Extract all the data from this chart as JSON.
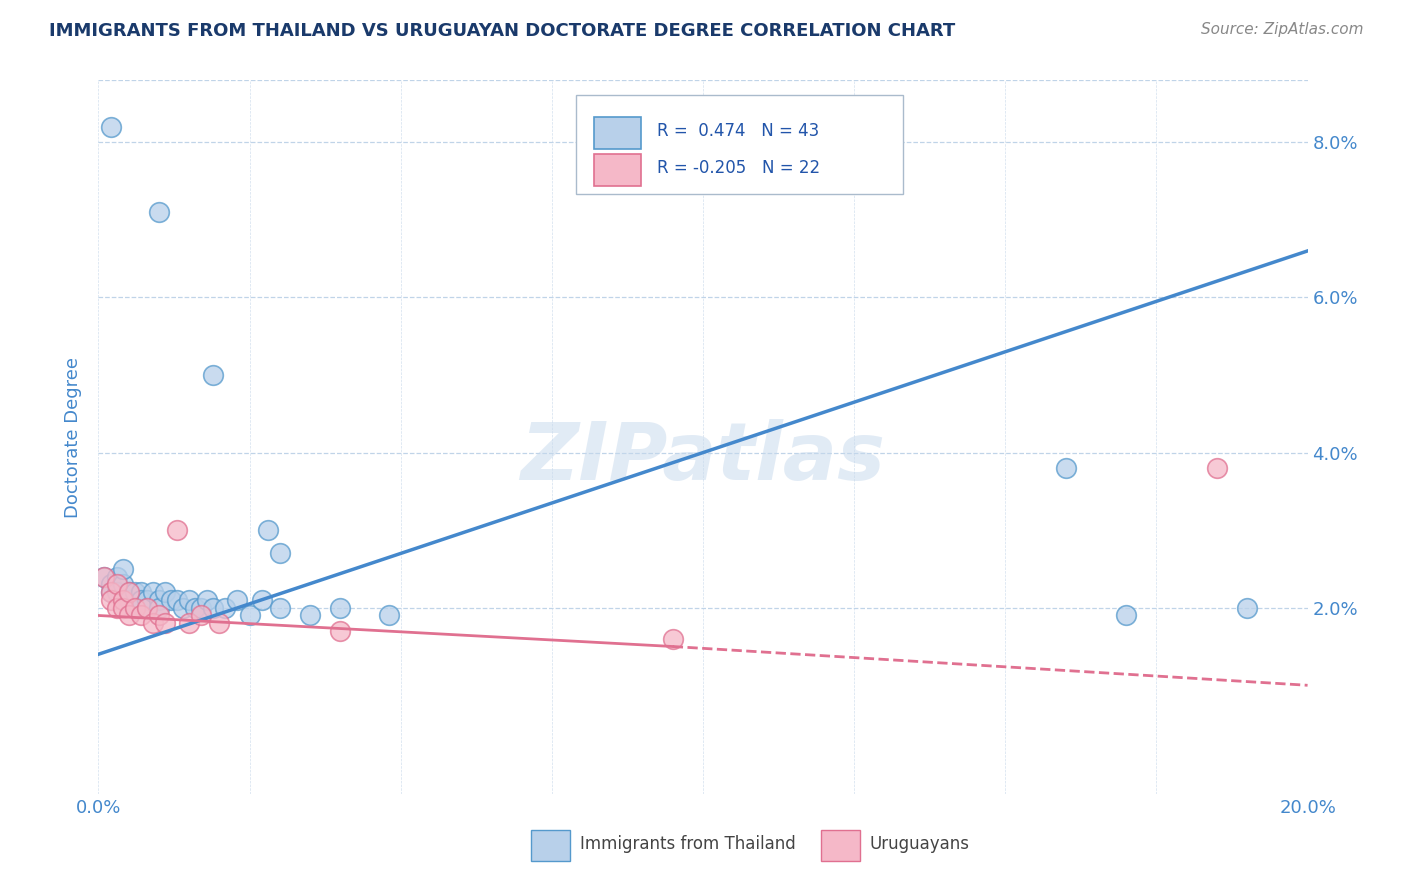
{
  "title": "IMMIGRANTS FROM THAILAND VS URUGUAYAN DOCTORATE DEGREE CORRELATION CHART",
  "source": "Source: ZipAtlas.com",
  "ylabel": "Doctorate Degree",
  "watermark": "ZIPatlas",
  "xlim": [
    0.0,
    0.2
  ],
  "ylim": [
    -0.004,
    0.088
  ],
  "xtick_positions": [
    0.0,
    0.2
  ],
  "xtick_labels": [
    "0.0%",
    "20.0%"
  ],
  "ytick_values": [
    0.02,
    0.04,
    0.06,
    0.08
  ],
  "ytick_labels": [
    "2.0%",
    "4.0%",
    "6.0%",
    "8.0%"
  ],
  "legend_label1": "Immigrants from Thailand",
  "legend_label2": "Uruguayans",
  "color_blue_fill": "#b8d0ea",
  "color_blue_edge": "#5599cc",
  "color_pink_fill": "#f5b8c8",
  "color_pink_edge": "#e07090",
  "line_blue": "#4488cc",
  "line_pink": "#e07090",
  "background": "#ffffff",
  "grid_color": "#c0d4e8",
  "title_color": "#1a3a6b",
  "axis_tick_color": "#4488cc",
  "ylabel_color": "#4488cc",
  "source_color": "#888888",
  "legend_text_color": "#2255aa",
  "scatter_blue": [
    [
      0.002,
      0.082
    ],
    [
      0.01,
      0.071
    ],
    [
      0.019,
      0.05
    ],
    [
      0.028,
      0.03
    ],
    [
      0.03,
      0.027
    ],
    [
      0.001,
      0.024
    ],
    [
      0.002,
      0.023
    ],
    [
      0.002,
      0.022
    ],
    [
      0.003,
      0.024
    ],
    [
      0.003,
      0.022
    ],
    [
      0.004,
      0.023
    ],
    [
      0.004,
      0.025
    ],
    [
      0.005,
      0.022
    ],
    [
      0.005,
      0.021
    ],
    [
      0.006,
      0.022
    ],
    [
      0.006,
      0.02
    ],
    [
      0.007,
      0.022
    ],
    [
      0.007,
      0.021
    ],
    [
      0.008,
      0.021
    ],
    [
      0.008,
      0.02
    ],
    [
      0.009,
      0.022
    ],
    [
      0.01,
      0.021
    ],
    [
      0.01,
      0.02
    ],
    [
      0.011,
      0.022
    ],
    [
      0.012,
      0.021
    ],
    [
      0.013,
      0.021
    ],
    [
      0.014,
      0.02
    ],
    [
      0.015,
      0.021
    ],
    [
      0.016,
      0.02
    ],
    [
      0.017,
      0.02
    ],
    [
      0.018,
      0.021
    ],
    [
      0.019,
      0.02
    ],
    [
      0.021,
      0.02
    ],
    [
      0.023,
      0.021
    ],
    [
      0.025,
      0.019
    ],
    [
      0.027,
      0.021
    ],
    [
      0.03,
      0.02
    ],
    [
      0.035,
      0.019
    ],
    [
      0.04,
      0.02
    ],
    [
      0.048,
      0.019
    ],
    [
      0.16,
      0.038
    ],
    [
      0.17,
      0.019
    ],
    [
      0.19,
      0.02
    ]
  ],
  "scatter_pink": [
    [
      0.001,
      0.024
    ],
    [
      0.002,
      0.022
    ],
    [
      0.002,
      0.021
    ],
    [
      0.003,
      0.023
    ],
    [
      0.003,
      0.02
    ],
    [
      0.004,
      0.021
    ],
    [
      0.004,
      0.02
    ],
    [
      0.005,
      0.022
    ],
    [
      0.005,
      0.019
    ],
    [
      0.006,
      0.02
    ],
    [
      0.007,
      0.019
    ],
    [
      0.008,
      0.02
    ],
    [
      0.009,
      0.018
    ],
    [
      0.01,
      0.019
    ],
    [
      0.011,
      0.018
    ],
    [
      0.013,
      0.03
    ],
    [
      0.015,
      0.018
    ],
    [
      0.017,
      0.019
    ],
    [
      0.02,
      0.018
    ],
    [
      0.04,
      0.017
    ],
    [
      0.095,
      0.016
    ],
    [
      0.185,
      0.038
    ]
  ],
  "trendline_blue": [
    [
      0.0,
      0.014
    ],
    [
      0.2,
      0.066
    ]
  ],
  "trendline_pink_solid": [
    [
      0.0,
      0.019
    ],
    [
      0.095,
      0.015
    ]
  ],
  "trendline_pink_dash": [
    [
      0.095,
      0.015
    ],
    [
      0.2,
      0.01
    ]
  ]
}
